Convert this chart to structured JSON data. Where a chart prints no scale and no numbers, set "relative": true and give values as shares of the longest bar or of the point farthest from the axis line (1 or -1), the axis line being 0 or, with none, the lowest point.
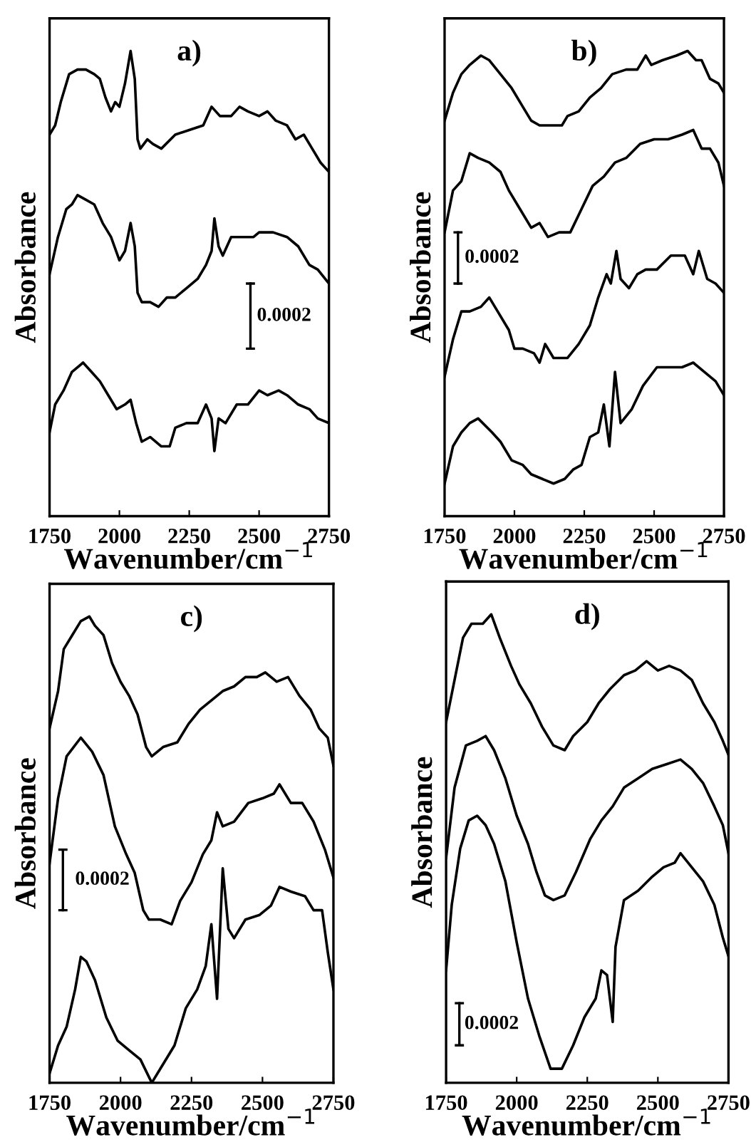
{
  "chart_data": [
    {
      "type": "line",
      "title": "a)",
      "xlabel": "Wavenumber/cm$^{−1}$",
      "ylabel": "Absorbance",
      "relative": true,
      "xlim": [
        1750,
        2750
      ],
      "xticks": [
        1750,
        2000,
        2250,
        2500,
        2750
      ],
      "annotations": [
        "0.0002"
      ],
      "series": [
        {
          "color": "#000000",
          "x": [
            1750,
            1770,
            1790,
            1820,
            1850,
            1880,
            1910,
            1930,
            1950,
            1970,
            1985,
            2000,
            2020,
            2040,
            2055,
            2065,
            2075,
            2100,
            2120,
            2150,
            2200,
            2250,
            2300,
            2330,
            2360,
            2400,
            2430,
            2460,
            2500,
            2530,
            2560,
            2600,
            2630,
            2660,
            2690,
            2720,
            2750
          ],
          "values": [
            0.82,
            0.84,
            0.89,
            0.95,
            0.96,
            0.96,
            0.95,
            0.94,
            0.9,
            0.87,
            0.89,
            0.88,
            0.93,
            1.0,
            0.94,
            0.81,
            0.79,
            0.81,
            0.8,
            0.79,
            0.82,
            0.83,
            0.84,
            0.88,
            0.86,
            0.86,
            0.88,
            0.87,
            0.86,
            0.87,
            0.85,
            0.84,
            0.81,
            0.82,
            0.79,
            0.76,
            0.74
          ]
        },
        {
          "color": "#000000",
          "x": [
            1750,
            1780,
            1810,
            1830,
            1850,
            1880,
            1910,
            1940,
            1970,
            2000,
            2020,
            2040,
            2055,
            2065,
            2080,
            2110,
            2140,
            2170,
            2200,
            2240,
            2280,
            2310,
            2330,
            2340,
            2355,
            2370,
            2400,
            2440,
            2480,
            2500,
            2550,
            2600,
            2640,
            2680,
            2710,
            2750
          ],
          "values": [
            0.52,
            0.6,
            0.66,
            0.67,
            0.69,
            0.68,
            0.67,
            0.63,
            0.6,
            0.55,
            0.57,
            0.63,
            0.58,
            0.48,
            0.46,
            0.46,
            0.45,
            0.47,
            0.47,
            0.49,
            0.51,
            0.54,
            0.57,
            0.64,
            0.58,
            0.56,
            0.6,
            0.6,
            0.6,
            0.61,
            0.61,
            0.6,
            0.58,
            0.54,
            0.53,
            0.5
          ]
        },
        {
          "color": "#000000",
          "x": [
            1750,
            1770,
            1800,
            1830,
            1870,
            1900,
            1930,
            1960,
            1990,
            2020,
            2040,
            2060,
            2080,
            2110,
            2150,
            2180,
            2200,
            2240,
            2280,
            2310,
            2330,
            2340,
            2355,
            2380,
            2420,
            2460,
            2500,
            2530,
            2570,
            2600,
            2640,
            2680,
            2710,
            2750
          ],
          "values": [
            0.18,
            0.24,
            0.27,
            0.31,
            0.33,
            0.31,
            0.29,
            0.26,
            0.23,
            0.24,
            0.25,
            0.2,
            0.16,
            0.17,
            0.15,
            0.15,
            0.19,
            0.2,
            0.2,
            0.24,
            0.21,
            0.14,
            0.21,
            0.2,
            0.24,
            0.24,
            0.27,
            0.26,
            0.27,
            0.26,
            0.24,
            0.23,
            0.21,
            0.2
          ]
        }
      ]
    },
    {
      "type": "line",
      "title": "b)",
      "xlabel": "Wavenumber/cm$^{−1}$",
      "ylabel": "Absorbance",
      "relative": true,
      "xlim": [
        1750,
        2750
      ],
      "xticks": [
        1750,
        2000,
        2250,
        2500,
        2750
      ],
      "annotations": [
        "0.0002"
      ],
      "series": [
        {
          "color": "#000000",
          "x": [
            1750,
            1780,
            1810,
            1840,
            1880,
            1910,
            1950,
            1990,
            2030,
            2060,
            2090,
            2130,
            2170,
            2190,
            2230,
            2270,
            2310,
            2350,
            2400,
            2440,
            2470,
            2490,
            2530,
            2580,
            2620,
            2650,
            2670,
            2700,
            2730,
            2750
          ],
          "values": [
            0.85,
            0.91,
            0.95,
            0.97,
            0.99,
            0.98,
            0.95,
            0.92,
            0.88,
            0.85,
            0.84,
            0.84,
            0.84,
            0.86,
            0.87,
            0.9,
            0.92,
            0.95,
            0.96,
            0.96,
            0.99,
            0.97,
            0.98,
            0.99,
            1.0,
            0.98,
            0.98,
            0.94,
            0.93,
            0.91
          ]
        },
        {
          "color": "#000000",
          "x": [
            1750,
            1780,
            1810,
            1840,
            1870,
            1910,
            1950,
            1980,
            2020,
            2060,
            2090,
            2120,
            2160,
            2200,
            2240,
            2280,
            2320,
            2360,
            2400,
            2450,
            2500,
            2550,
            2600,
            2640,
            2670,
            2700,
            2730,
            2750
          ],
          "values": [
            0.61,
            0.7,
            0.72,
            0.78,
            0.77,
            0.76,
            0.74,
            0.7,
            0.66,
            0.62,
            0.63,
            0.6,
            0.61,
            0.61,
            0.66,
            0.71,
            0.73,
            0.76,
            0.77,
            0.8,
            0.81,
            0.81,
            0.82,
            0.83,
            0.79,
            0.79,
            0.76,
            0.71
          ]
        },
        {
          "color": "#000000",
          "x": [
            1750,
            1780,
            1810,
            1840,
            1880,
            1910,
            1940,
            1980,
            2000,
            2030,
            2070,
            2090,
            2110,
            2140,
            2190,
            2230,
            2270,
            2300,
            2330,
            2345,
            2365,
            2380,
            2410,
            2440,
            2470,
            2510,
            2560,
            2610,
            2640,
            2660,
            2690,
            2720,
            2750
          ],
          "values": [
            0.3,
            0.38,
            0.44,
            0.44,
            0.45,
            0.47,
            0.44,
            0.4,
            0.36,
            0.36,
            0.35,
            0.33,
            0.37,
            0.34,
            0.34,
            0.37,
            0.41,
            0.47,
            0.52,
            0.5,
            0.57,
            0.51,
            0.49,
            0.52,
            0.53,
            0.53,
            0.56,
            0.56,
            0.52,
            0.57,
            0.51,
            0.5,
            0.48
          ]
        },
        {
          "color": "#000000",
          "x": [
            1750,
            1780,
            1810,
            1840,
            1870,
            1920,
            1950,
            1990,
            2030,
            2060,
            2100,
            2140,
            2180,
            2210,
            2240,
            2270,
            2300,
            2320,
            2340,
            2360,
            2380,
            2420,
            2460,
            2510,
            2550,
            2600,
            2640,
            2680,
            2720,
            2750
          ],
          "values": [
            0.07,
            0.15,
            0.18,
            0.2,
            0.21,
            0.18,
            0.16,
            0.12,
            0.11,
            0.09,
            0.08,
            0.07,
            0.08,
            0.1,
            0.11,
            0.17,
            0.18,
            0.24,
            0.15,
            0.31,
            0.2,
            0.23,
            0.28,
            0.32,
            0.32,
            0.32,
            0.33,
            0.31,
            0.29,
            0.26
          ]
        }
      ]
    },
    {
      "type": "line",
      "title": "c)",
      "xlabel": "Wavenumber/cm$^{−1}$",
      "ylabel": "Absorbance",
      "relative": true,
      "xlim": [
        1750,
        2750
      ],
      "xticks": [
        1750,
        2000,
        2250,
        2500,
        2750
      ],
      "annotations": [
        "0.0002"
      ],
      "series": [
        {
          "color": "#000000",
          "x": [
            1750,
            1780,
            1800,
            1830,
            1860,
            1890,
            1910,
            1940,
            1970,
            2000,
            2030,
            2060,
            2090,
            2110,
            2150,
            2200,
            2240,
            2280,
            2320,
            2360,
            2400,
            2440,
            2480,
            2510,
            2550,
            2590,
            2630,
            2670,
            2700,
            2730,
            2750
          ],
          "values": [
            0.76,
            0.84,
            0.93,
            0.96,
            0.99,
            1.0,
            0.98,
            0.96,
            0.9,
            0.86,
            0.83,
            0.79,
            0.72,
            0.7,
            0.72,
            0.73,
            0.77,
            0.8,
            0.82,
            0.84,
            0.85,
            0.87,
            0.87,
            0.88,
            0.86,
            0.87,
            0.83,
            0.8,
            0.76,
            0.74,
            0.68
          ]
        },
        {
          "color": "#000000",
          "x": [
            1750,
            1780,
            1810,
            1860,
            1900,
            1940,
            1980,
            2020,
            2050,
            2080,
            2100,
            2140,
            2180,
            2210,
            2250,
            2290,
            2320,
            2340,
            2360,
            2400,
            2450,
            2500,
            2540,
            2560,
            2600,
            2640,
            2680,
            2720,
            2750
          ],
          "values": [
            0.47,
            0.61,
            0.7,
            0.74,
            0.71,
            0.66,
            0.55,
            0.49,
            0.45,
            0.37,
            0.35,
            0.35,
            0.34,
            0.39,
            0.43,
            0.49,
            0.52,
            0.58,
            0.55,
            0.56,
            0.6,
            0.61,
            0.62,
            0.64,
            0.6,
            0.6,
            0.56,
            0.5,
            0.44
          ]
        },
        {
          "color": "#000000",
          "x": [
            1750,
            1780,
            1810,
            1840,
            1860,
            1880,
            1910,
            1950,
            1990,
            2030,
            2070,
            2110,
            2140,
            2190,
            2230,
            2270,
            2300,
            2320,
            2340,
            2360,
            2380,
            2400,
            2440,
            2490,
            2530,
            2560,
            2600,
            2650,
            2680,
            2710,
            2730,
            2750
          ],
          "values": [
            0.02,
            0.08,
            0.12,
            0.2,
            0.27,
            0.26,
            0.22,
            0.14,
            0.09,
            0.07,
            0.05,
            0.0,
            0.03,
            0.08,
            0.16,
            0.2,
            0.25,
            0.34,
            0.18,
            0.46,
            0.33,
            0.31,
            0.35,
            0.36,
            0.38,
            0.42,
            0.41,
            0.4,
            0.37,
            0.37,
            0.28,
            0.2
          ]
        }
      ]
    },
    {
      "type": "line",
      "title": "d)",
      "xlabel": "Wavenumber/cm$^{−1}$",
      "ylabel": "Absorbance",
      "relative": true,
      "xlim": [
        1750,
        2750
      ],
      "xticks": [
        1750,
        2000,
        2250,
        2500,
        2750
      ],
      "annotations": [
        "0.0002"
      ],
      "series": [
        {
          "color": "#000000",
          "x": [
            1750,
            1780,
            1810,
            1840,
            1880,
            1910,
            1940,
            1980,
            2010,
            2050,
            2090,
            2130,
            2170,
            2200,
            2250,
            2290,
            2330,
            2380,
            2420,
            2460,
            2500,
            2540,
            2580,
            2620,
            2660,
            2700,
            2730,
            2750
          ],
          "values": [
            0.77,
            0.86,
            0.95,
            0.98,
            0.98,
            1.0,
            0.95,
            0.89,
            0.85,
            0.81,
            0.76,
            0.72,
            0.71,
            0.74,
            0.77,
            0.81,
            0.84,
            0.87,
            0.88,
            0.9,
            0.88,
            0.89,
            0.88,
            0.86,
            0.81,
            0.77,
            0.73,
            0.7
          ]
        },
        {
          "color": "#000000",
          "x": [
            1750,
            1780,
            1820,
            1860,
            1890,
            1920,
            1960,
            2000,
            2040,
            2070,
            2100,
            2130,
            2170,
            2210,
            2260,
            2300,
            2340,
            2380,
            2430,
            2480,
            2530,
            2580,
            2620,
            2660,
            2700,
            2730,
            2750
          ],
          "values": [
            0.48,
            0.63,
            0.72,
            0.73,
            0.74,
            0.71,
            0.65,
            0.57,
            0.51,
            0.45,
            0.4,
            0.39,
            0.4,
            0.45,
            0.52,
            0.56,
            0.59,
            0.63,
            0.65,
            0.67,
            0.68,
            0.69,
            0.67,
            0.64,
            0.59,
            0.55,
            0.49
          ]
        },
        {
          "color": "#000000",
          "x": [
            1750,
            1770,
            1800,
            1830,
            1860,
            1890,
            1920,
            1960,
            2000,
            2040,
            2080,
            2120,
            2160,
            2200,
            2240,
            2280,
            2300,
            2320,
            2340,
            2350,
            2380,
            2430,
            2480,
            2520,
            2560,
            2580,
            2620,
            2660,
            2700,
            2730,
            2750
          ],
          "values": [
            0.24,
            0.38,
            0.5,
            0.56,
            0.57,
            0.55,
            0.51,
            0.43,
            0.3,
            0.18,
            0.1,
            0.03,
            0.03,
            0.08,
            0.14,
            0.18,
            0.24,
            0.23,
            0.13,
            0.29,
            0.39,
            0.41,
            0.44,
            0.46,
            0.47,
            0.49,
            0.46,
            0.43,
            0.38,
            0.31,
            0.27
          ]
        }
      ]
    }
  ]
}
